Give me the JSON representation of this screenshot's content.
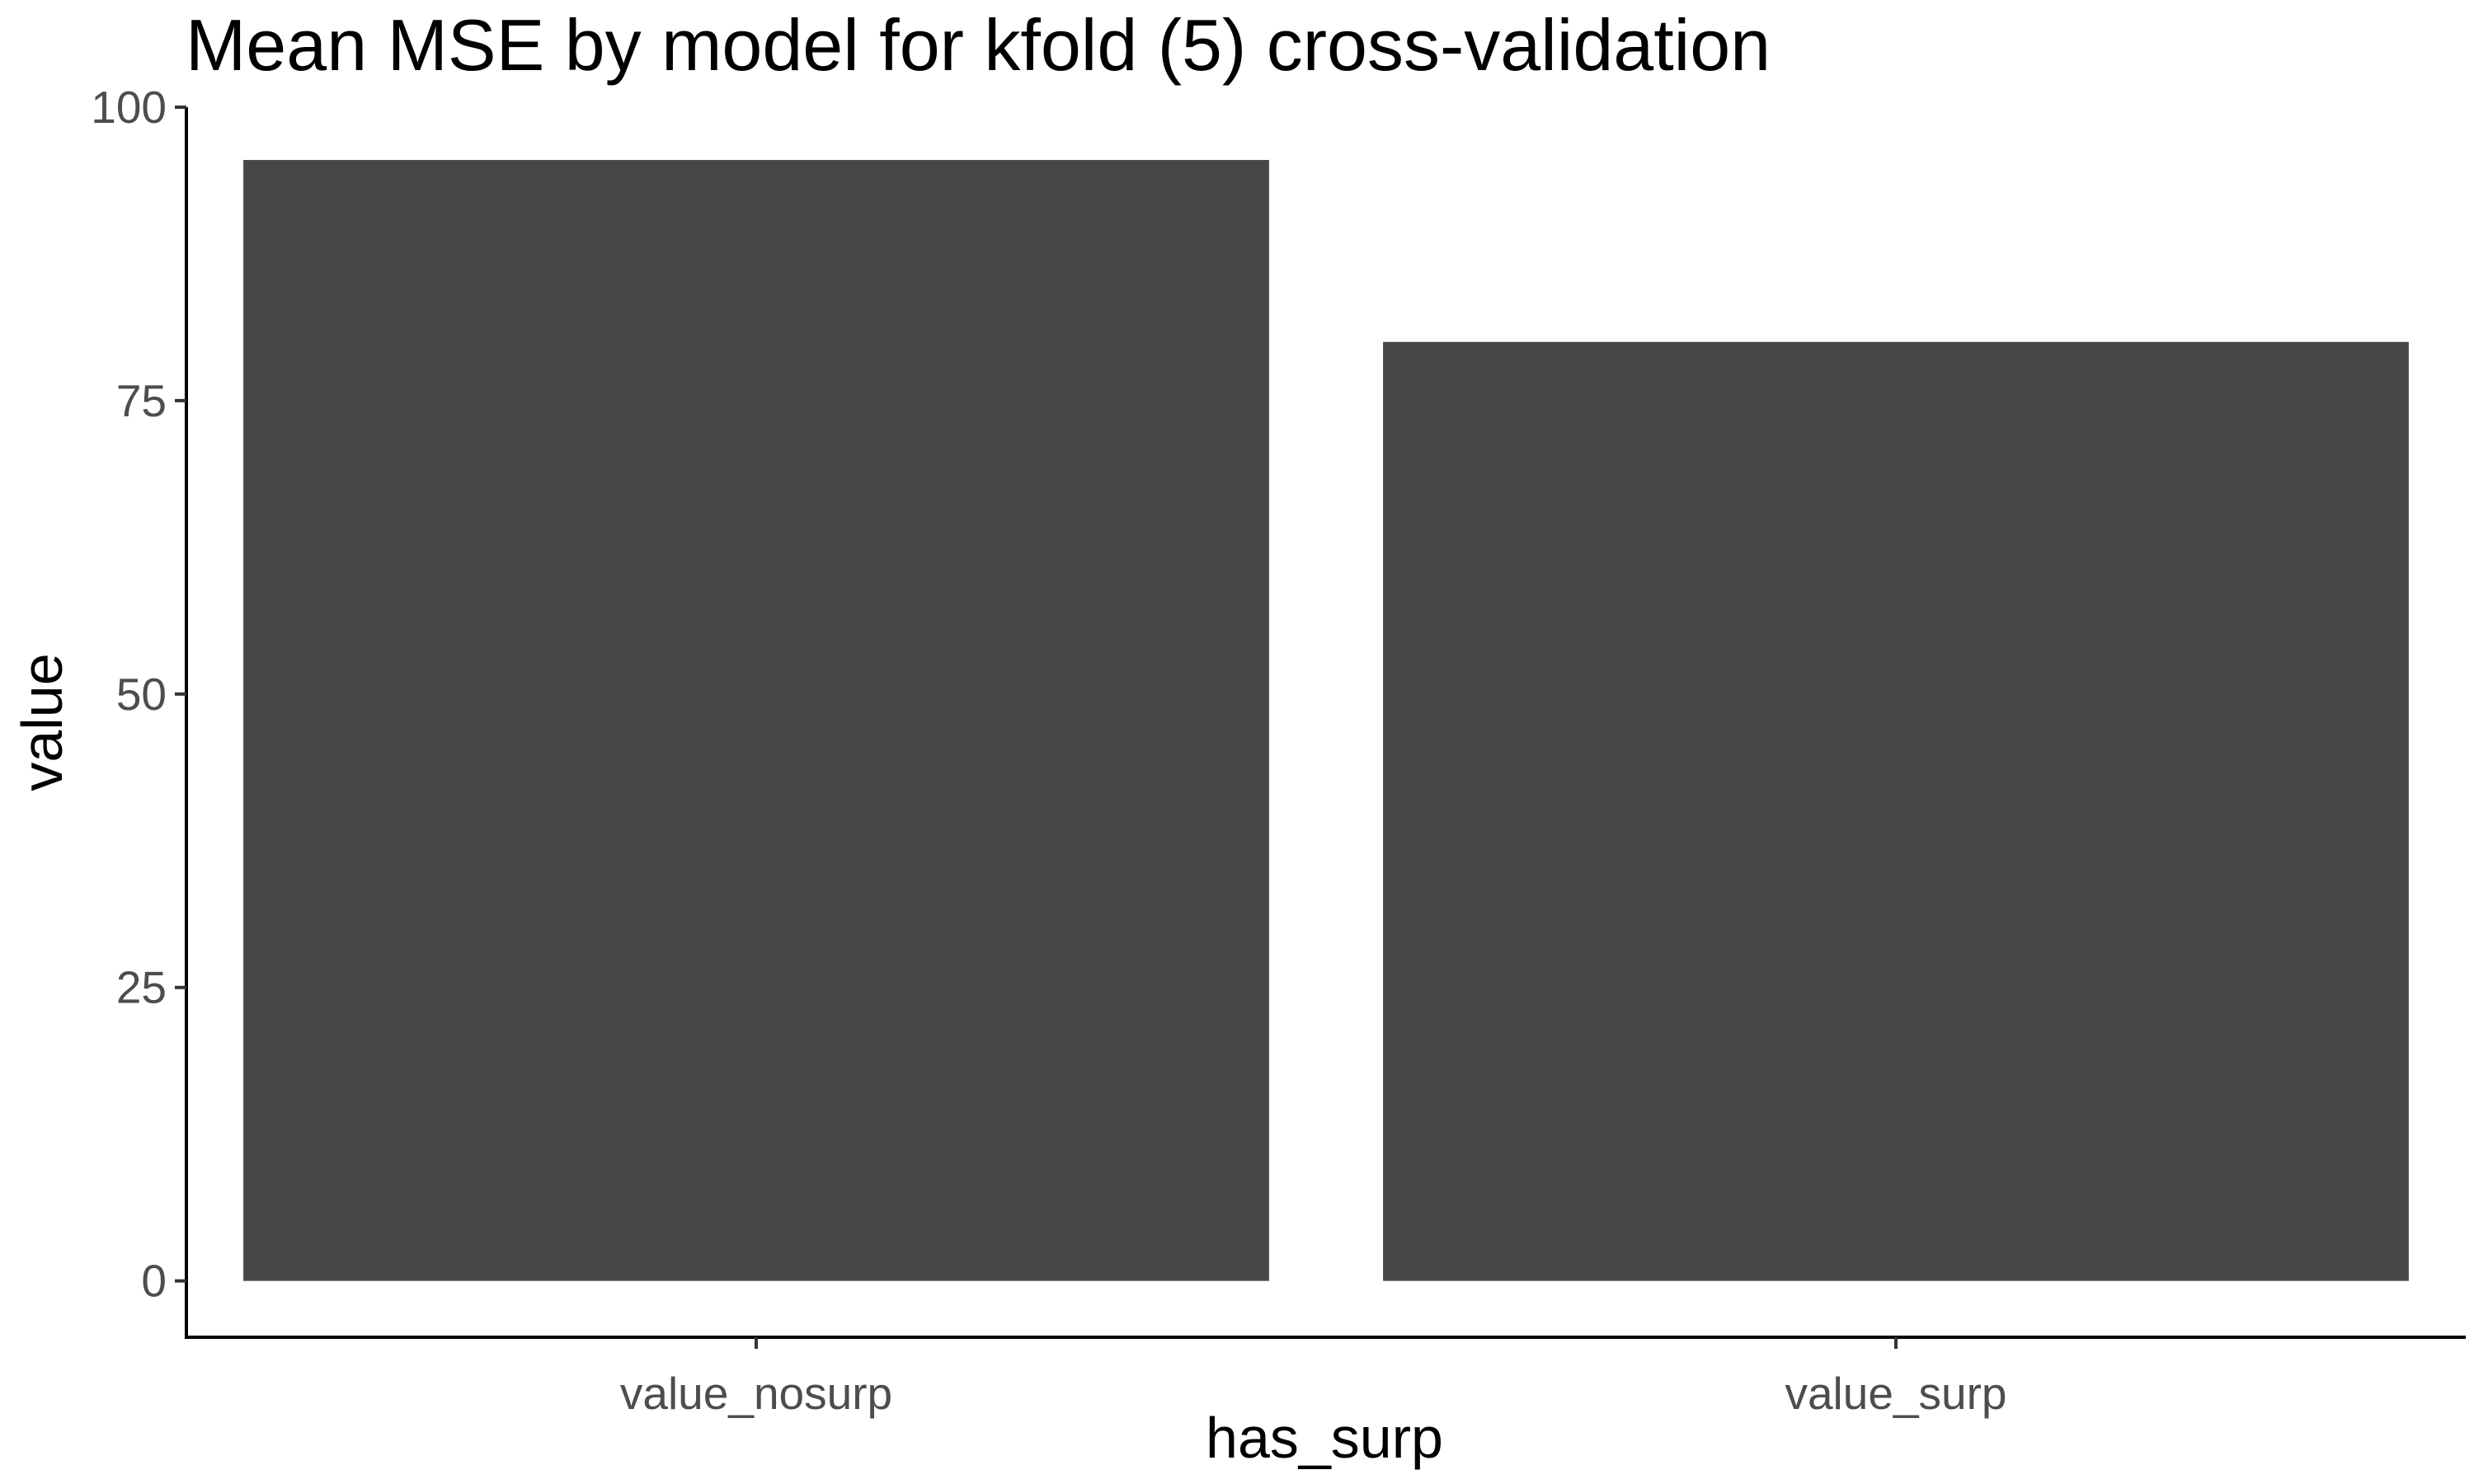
{
  "chart_data": {
    "type": "bar",
    "title": "Mean MSE by model for kfold (5) cross-validation",
    "xlabel": "has_surp",
    "ylabel": "value",
    "categories": [
      "value_nosurp",
      "value_surp"
    ],
    "values": [
      95.5,
      80.0
    ],
    "ylim": [
      -4.8,
      100
    ],
    "yticks": [
      0,
      25,
      50,
      75,
      100
    ],
    "grid": false,
    "legend": "none",
    "bar_color": "#474747"
  }
}
